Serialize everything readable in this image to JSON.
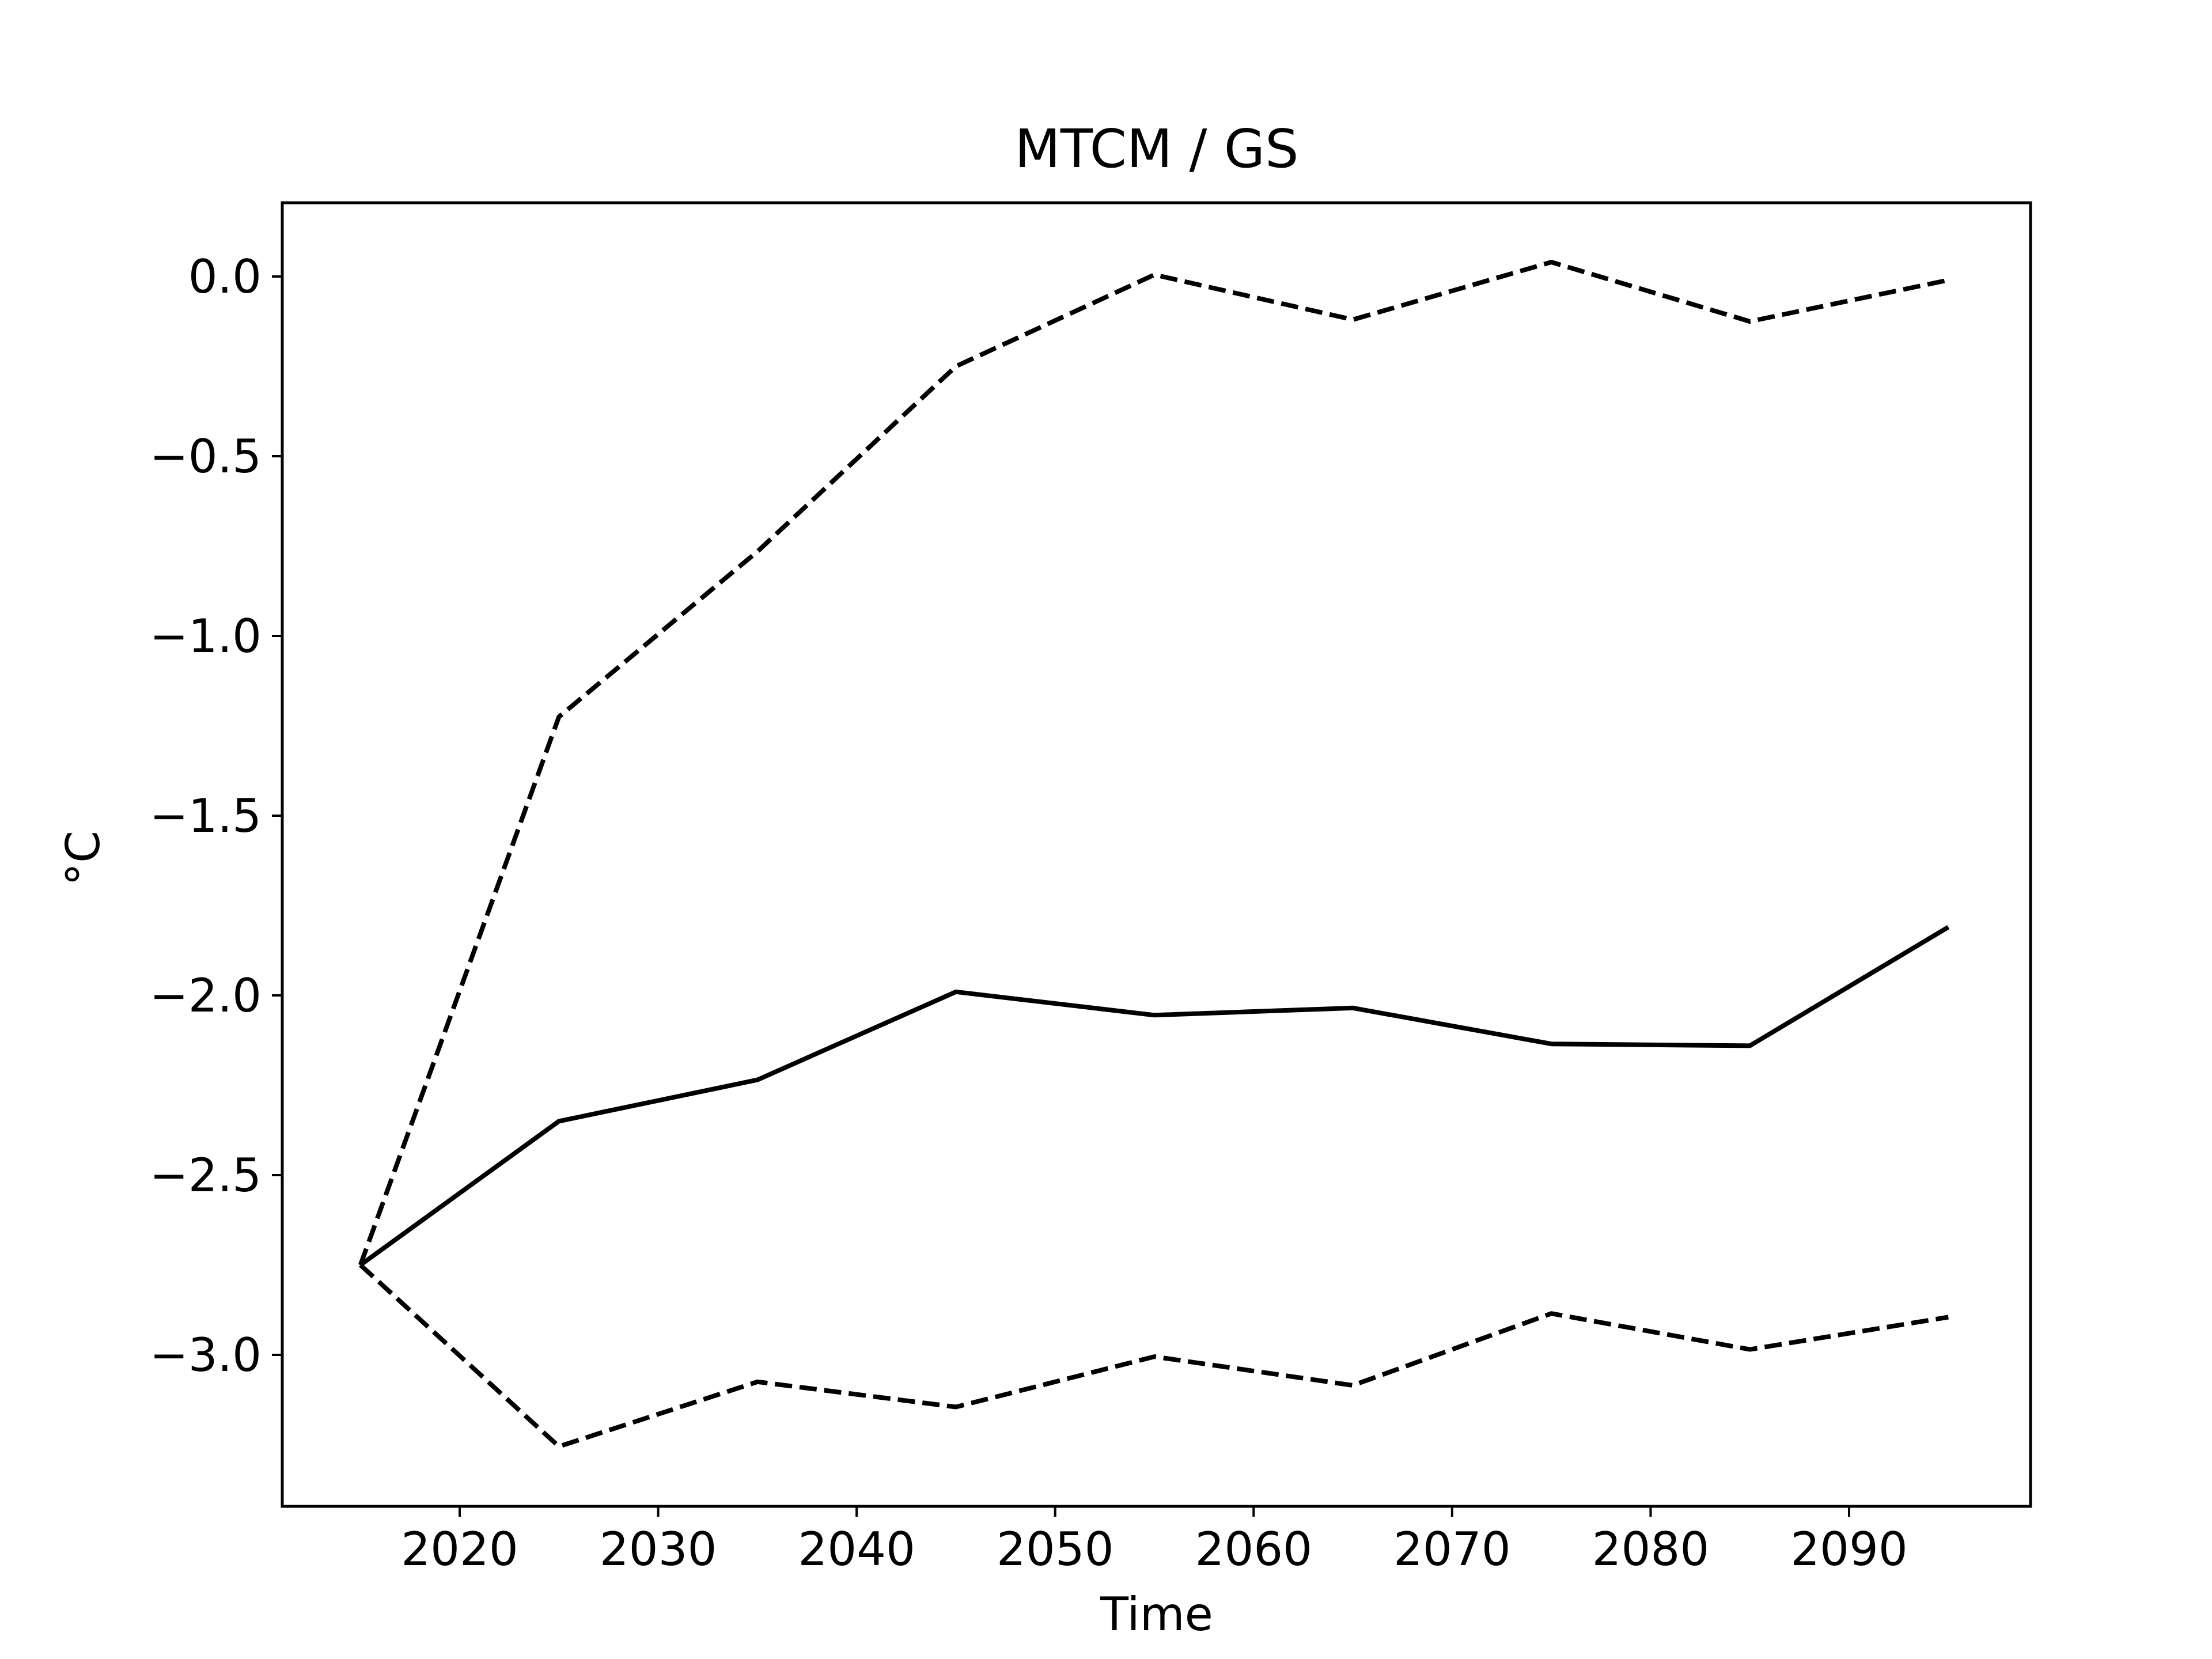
{
  "chart_data": {
    "type": "line",
    "title": "MTCM / GS",
    "xlabel": "Time",
    "ylabel": "°C",
    "x": [
      2015,
      2025,
      2035,
      2045,
      2055,
      2065,
      2075,
      2085,
      2095
    ],
    "xlim": [
      2006,
      2094
    ],
    "ylim": [
      -3.42,
      0.21
    ],
    "xticks": [
      2020,
      2030,
      2040,
      2050,
      2060,
      2070,
      2080,
      2090
    ],
    "xtick_labels": [
      "2020",
      "2030",
      "2040",
      "2050",
      "2060",
      "2070",
      "2080",
      "2090"
    ],
    "yticks": [
      0.0,
      -0.5,
      -1.0,
      -1.5,
      -2.0,
      -2.5,
      -3.0
    ],
    "ytick_labels": [
      "0.0",
      "−0.5",
      "−1.0",
      "−1.5",
      "−2.0",
      "−2.5",
      "−3.0"
    ],
    "grid": false,
    "legend": "none",
    "series": [
      {
        "style": "solid",
        "color": "#000000",
        "values": [
          -2.75,
          -2.35,
          -2.235,
          -1.99,
          -2.055,
          -2.035,
          -2.135,
          -2.14,
          -1.81
        ]
      },
      {
        "style": "dashed",
        "color": "#000000",
        "values": [
          -2.75,
          -1.225,
          -0.765,
          -0.25,
          0.005,
          -0.12,
          0.04,
          -0.125,
          -0.01
        ]
      },
      {
        "style": "dashed",
        "color": "#000000",
        "values": [
          -2.75,
          -3.255,
          -3.075,
          -3.145,
          -3.005,
          -3.085,
          -2.885,
          -2.985,
          -2.895
        ]
      }
    ]
  }
}
